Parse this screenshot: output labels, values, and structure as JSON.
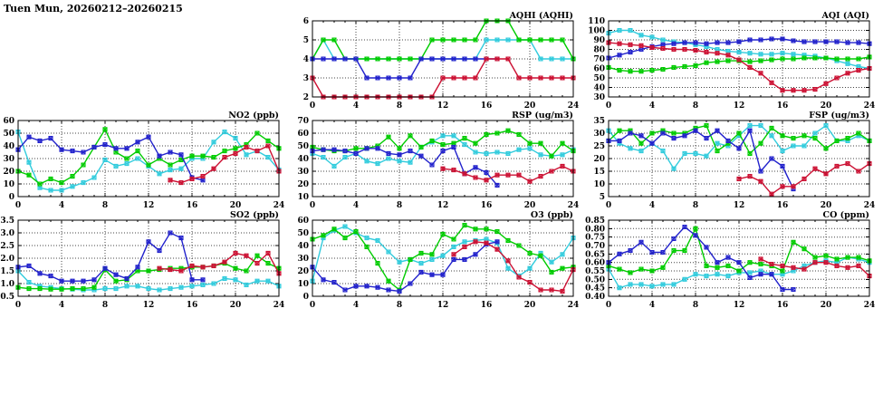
{
  "page_title": "Tuen Mun, 20260212–20260215",
  "series_colors": {
    "cyan": "#33ccdd",
    "green": "#00cc00",
    "blue": "#2222cc",
    "red": "#cc1133"
  },
  "x_axis": {
    "min": 0,
    "max": 24,
    "major_step": 4,
    "minor_step": 1,
    "tick_labels": [
      0,
      4,
      8,
      12,
      16,
      20,
      24
    ]
  },
  "chart_data": [
    {
      "id": "aqhi",
      "type": "line",
      "title": "AQHI (AQHI)",
      "ymin": 2,
      "ymax": 6,
      "ystep": 1,
      "ydec": 0,
      "grid": true,
      "series": [
        {
          "color": "cyan",
          "start": 0,
          "values": [
            4,
            5,
            4,
            4,
            4,
            4,
            4,
            4,
            4,
            4,
            4,
            4,
            4,
            4,
            4,
            4,
            5,
            5,
            5,
            5,
            5,
            4,
            4,
            4,
            4
          ]
        },
        {
          "color": "green",
          "start": 0,
          "values": [
            4,
            5,
            5,
            4,
            4,
            4,
            4,
            4,
            4,
            4,
            4,
            5,
            5,
            5,
            5,
            5,
            6,
            6,
            6,
            5,
            5,
            5,
            5,
            5,
            4
          ]
        },
        {
          "color": "blue",
          "start": 0,
          "values": [
            4,
            4,
            4,
            4,
            4,
            3,
            3,
            3,
            3,
            3,
            4,
            4,
            4,
            4,
            4,
            4,
            4,
            4
          ]
        },
        {
          "color": "red",
          "start": 0,
          "values": [
            3,
            2,
            2,
            2,
            2,
            2,
            2,
            2,
            2,
            2,
            2,
            2,
            3,
            3,
            3,
            3,
            4,
            4,
            4,
            3,
            3,
            3,
            3,
            3,
            3
          ]
        }
      ]
    },
    {
      "id": "aqi",
      "type": "line",
      "title": "AQI (AQI)",
      "ymin": 30,
      "ymax": 110,
      "ystep": 10,
      "ydec": 0,
      "grid": true,
      "series": [
        {
          "color": "cyan",
          "start": 0,
          "values": [
            97,
            100,
            100,
            95,
            93,
            90,
            88,
            87,
            85,
            83,
            80,
            78,
            77,
            76,
            75,
            75,
            76,
            75,
            74,
            73,
            71,
            68,
            65,
            62,
            60
          ]
        },
        {
          "color": "green",
          "start": 0,
          "values": [
            61,
            58,
            57,
            57,
            58,
            59,
            61,
            62,
            63,
            66,
            67,
            68,
            68,
            67,
            68,
            69,
            70,
            70,
            71,
            71,
            71,
            70,
            70,
            70,
            72
          ]
        },
        {
          "color": "blue",
          "start": 0,
          "values": [
            71,
            74,
            77,
            80,
            83,
            85,
            86,
            87,
            87,
            86,
            87,
            87,
            88,
            90,
            90,
            91,
            91,
            89,
            88,
            88,
            88,
            88,
            87,
            87,
            86
          ]
        },
        {
          "color": "red",
          "start": 0,
          "values": [
            87,
            86,
            85,
            84,
            82,
            81,
            80,
            80,
            79,
            77,
            76,
            74,
            69,
            61,
            55,
            45,
            37,
            37,
            37,
            38,
            44,
            50,
            55,
            58,
            60
          ]
        }
      ]
    },
    {
      "id": "no2",
      "type": "line",
      "title": "NO2 (ppb)",
      "ymin": 0,
      "ymax": 60,
      "ystep": 10,
      "ydec": 0,
      "grid": true,
      "series": [
        {
          "color": "cyan",
          "start": 0,
          "values": [
            51,
            27,
            7,
            5,
            5,
            8,
            11,
            15,
            29,
            24,
            26,
            30,
            24,
            18,
            21,
            22,
            30,
            30,
            43,
            51,
            46,
            33,
            36,
            31,
            21
          ]
        },
        {
          "color": "green",
          "start": 0,
          "values": [
            20,
            17,
            10,
            14,
            11,
            16,
            25,
            39,
            53,
            35,
            30,
            36,
            25,
            30,
            25,
            29,
            32,
            32,
            31,
            36,
            38,
            41,
            50,
            44,
            38
          ]
        },
        {
          "color": "blue",
          "start": 0,
          "values": [
            37,
            47,
            44,
            46,
            37,
            36,
            35,
            39,
            41,
            38,
            38,
            43,
            47,
            32,
            35,
            33,
            15,
            13
          ]
        },
        {
          "color": "red",
          "start": 14,
          "values": [
            13,
            11,
            14,
            16,
            22,
            31,
            34,
            39,
            36,
            40,
            20
          ]
        }
      ]
    },
    {
      "id": "rsp",
      "type": "line",
      "title": "RSP (ug/m3)",
      "ymin": 10,
      "ymax": 70,
      "ystep": 10,
      "ydec": 0,
      "grid": true,
      "series": [
        {
          "color": "cyan",
          "start": 0,
          "values": [
            44,
            41,
            34,
            41,
            44,
            38,
            36,
            40,
            38,
            37,
            49,
            53,
            58,
            58,
            51,
            45,
            44,
            45,
            44,
            47,
            48,
            43,
            42,
            43,
            47
          ]
        },
        {
          "color": "green",
          "start": 0,
          "values": [
            49,
            47,
            46,
            46,
            48,
            48,
            50,
            57,
            48,
            58,
            49,
            54,
            51,
            52,
            56,
            52,
            59,
            60,
            62,
            59,
            52,
            52,
            42,
            52,
            46
          ]
        },
        {
          "color": "blue",
          "start": 0,
          "values": [
            46,
            47,
            47,
            46,
            44,
            48,
            48,
            44,
            43,
            46,
            42,
            35,
            46,
            49,
            28,
            33,
            29,
            19
          ]
        },
        {
          "color": "red",
          "start": 12,
          "values": [
            32,
            31,
            28,
            25,
            23,
            27,
            27,
            27,
            22,
            26,
            30,
            34,
            30
          ]
        }
      ]
    },
    {
      "id": "fsp",
      "type": "line",
      "title": "FSP (ug/m3)",
      "ymin": 5,
      "ymax": 35,
      "ystep": 5,
      "ydec": 0,
      "grid": true,
      "series": [
        {
          "color": "cyan",
          "start": 0,
          "values": [
            31,
            26,
            24,
            23,
            26,
            23,
            16,
            22,
            22,
            21,
            26,
            25,
            29,
            33,
            33,
            29,
            23,
            25,
            25,
            30,
            33,
            27,
            27,
            29,
            27
          ]
        },
        {
          "color": "green",
          "start": 0,
          "values": [
            27,
            31,
            31,
            26,
            30,
            31,
            30,
            30,
            32,
            33,
            23,
            26,
            30,
            22,
            26,
            32,
            29,
            28,
            29,
            28,
            24,
            27,
            28,
            30,
            27
          ]
        },
        {
          "color": "blue",
          "start": 0,
          "values": [
            27,
            27,
            30,
            29,
            26,
            30,
            28,
            29,
            31,
            28,
            31,
            27,
            24,
            31,
            15,
            20,
            17,
            8
          ]
        },
        {
          "color": "red",
          "start": 12,
          "values": [
            12,
            13,
            11,
            6,
            9,
            9,
            12,
            16,
            14,
            17,
            18,
            15,
            18
          ]
        }
      ]
    },
    {
      "id": "so2",
      "type": "line",
      "title": "SO2 (ppb)",
      "ymin": 0.5,
      "ymax": 3.5,
      "ystep": 0.5,
      "ydec": 1,
      "grid": true,
      "series": [
        {
          "color": "cyan",
          "start": 0,
          "values": [
            1.5,
            1.05,
            0.9,
            0.85,
            0.8,
            0.78,
            0.75,
            0.75,
            0.8,
            0.8,
            0.9,
            0.9,
            0.8,
            0.75,
            0.8,
            0.85,
            0.9,
            0.95,
            1.0,
            1.2,
            1.15,
            0.95,
            1.1,
            1.1,
            0.9
          ]
        },
        {
          "color": "green",
          "start": 0,
          "values": [
            0.85,
            0.8,
            0.8,
            0.78,
            0.78,
            0.8,
            0.8,
            0.85,
            1.55,
            1.1,
            1.15,
            1.5,
            1.5,
            1.55,
            1.6,
            1.6,
            1.65,
            1.65,
            1.7,
            1.8,
            1.6,
            1.5,
            2.1,
            1.8,
            1.6
          ]
        },
        {
          "color": "blue",
          "start": 0,
          "values": [
            1.65,
            1.7,
            1.4,
            1.3,
            1.1,
            1.1,
            1.1,
            1.15,
            1.6,
            1.35,
            1.2,
            1.65,
            2.65,
            2.3,
            3.0,
            2.8,
            1.15,
            1.15
          ]
        },
        {
          "color": "red",
          "start": 13,
          "values": [
            1.6,
            1.55,
            1.5,
            1.7,
            1.65,
            1.7,
            1.85,
            2.2,
            2.1,
            1.8,
            2.2,
            1.4
          ]
        }
      ]
    },
    {
      "id": "o3",
      "type": "line",
      "title": "O3 (ppb)",
      "ymin": 0,
      "ymax": 60,
      "ystep": 10,
      "ydec": 0,
      "grid": true,
      "series": [
        {
          "color": "cyan",
          "start": 0,
          "values": [
            12,
            46,
            52,
            55,
            50,
            46,
            44,
            35,
            27,
            29,
            26,
            29,
            32,
            39,
            43,
            44,
            45,
            42,
            22,
            16,
            22,
            34,
            27,
            33,
            46
          ]
        },
        {
          "color": "green",
          "start": 0,
          "values": [
            45,
            48,
            53,
            46,
            51,
            39,
            26,
            12,
            5,
            29,
            34,
            33,
            49,
            45,
            56,
            53,
            53,
            51,
            44,
            40,
            34,
            32,
            19,
            22,
            23
          ]
        },
        {
          "color": "blue",
          "start": 0,
          "values": [
            23,
            13,
            11,
            5,
            8,
            8,
            7,
            5,
            4,
            10,
            19,
            17,
            17,
            29,
            29,
            33,
            41,
            43
          ]
        },
        {
          "color": "red",
          "start": 13,
          "values": [
            33,
            39,
            43,
            42,
            37,
            28,
            15,
            11,
            5,
            5,
            4,
            21
          ]
        }
      ]
    },
    {
      "id": "co",
      "type": "line",
      "title": "CO (ppm)",
      "ymin": 0.4,
      "ymax": 0.85,
      "ystep": 0.05,
      "ydec": 2,
      "grid": true,
      "series": [
        {
          "color": "cyan",
          "start": 0,
          "values": [
            0.56,
            0.45,
            0.47,
            0.47,
            0.46,
            0.47,
            0.47,
            0.5,
            0.53,
            0.52,
            0.53,
            0.52,
            0.54,
            0.54,
            0.55,
            0.53,
            0.53,
            0.55,
            0.58,
            0.6,
            0.61,
            0.6,
            0.63,
            0.62,
            0.6
          ]
        },
        {
          "color": "green",
          "start": 0,
          "values": [
            0.58,
            0.56,
            0.54,
            0.56,
            0.55,
            0.57,
            0.67,
            0.67,
            0.8,
            0.58,
            0.57,
            0.58,
            0.55,
            0.6,
            0.59,
            0.58,
            0.55,
            0.72,
            0.68,
            0.63,
            0.64,
            0.62,
            0.63,
            0.63,
            0.61
          ]
        },
        {
          "color": "blue",
          "start": 0,
          "values": [
            0.6,
            0.65,
            0.67,
            0.72,
            0.66,
            0.66,
            0.74,
            0.81,
            0.76,
            0.69,
            0.6,
            0.63,
            0.6,
            0.51,
            0.53,
            0.53,
            0.44,
            0.44
          ]
        },
        {
          "color": "red",
          "start": 14,
          "values": [
            0.62,
            0.59,
            0.58,
            0.57,
            0.56,
            0.6,
            0.6,
            0.58,
            0.57,
            0.58,
            0.52
          ]
        }
      ]
    }
  ]
}
